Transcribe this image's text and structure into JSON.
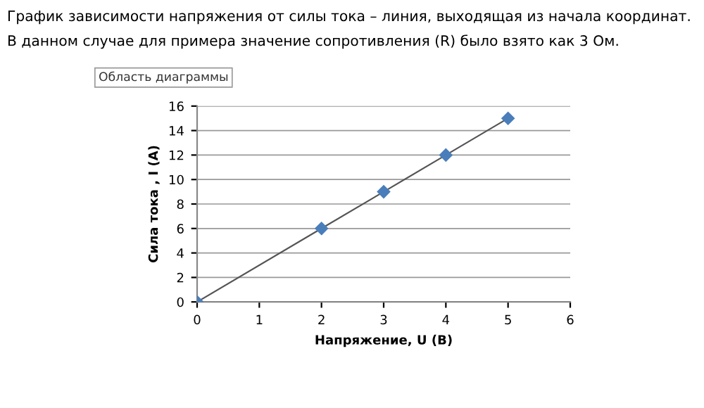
{
  "chart_data": {
    "type": "line",
    "title": "График зависимости напряжения от силы тока – линия, выходящая из начала координат.",
    "subtitle": "В данном случае для примера значение сопротивления (R) было взято как 3 Ом.",
    "annotations": [
      "Область диаграммы"
    ],
    "xlabel": "Напряжение, U (В)",
    "ylabel": "Сила тока , I (А)",
    "x": [
      0,
      2,
      3,
      4,
      5
    ],
    "series": [
      {
        "color": "#4a7ebb",
        "values": [
          0,
          6,
          9,
          12,
          15
        ]
      }
    ],
    "xlim": [
      0,
      6
    ],
    "xticks": [
      0,
      1,
      2,
      3,
      4,
      5,
      6
    ],
    "ylim": [
      0,
      16
    ],
    "yticks": [
      0,
      2,
      4,
      6,
      8,
      10,
      12,
      14,
      16
    ],
    "grid": "y",
    "marker": "diamond",
    "line_style": "solid",
    "legend": false
  }
}
